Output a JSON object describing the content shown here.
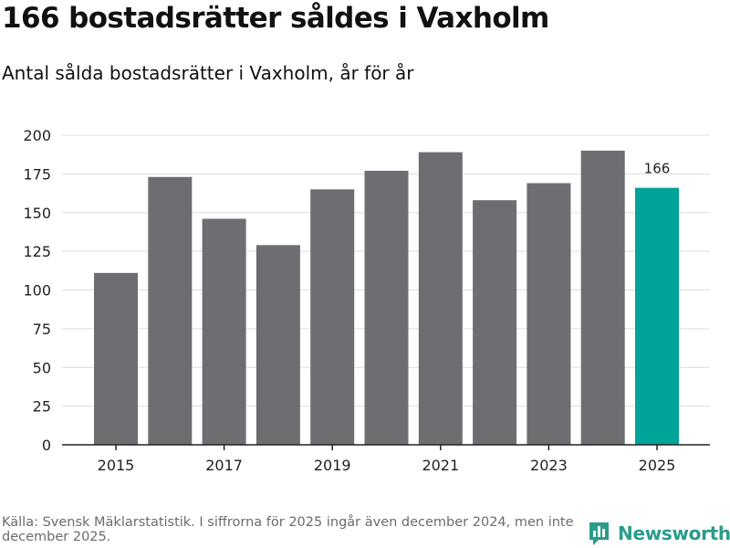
{
  "title": "166 bostadsrätter såldes i Vaxholm",
  "subtitle": "Antal sålda bostadsrätter i Vaxholm, år för år",
  "footer": {
    "source": "Källa: Svensk Mäklarstatistik. I siffrorna för 2025 ingår även december 2024, men inte december 2025.",
    "brand": "Newsworthy",
    "brand_icon": "bar-chart-speech-icon"
  },
  "colors": {
    "bar": "#6e6d72",
    "highlight": "#00a398",
    "grid": "#dddddd",
    "axis": "#222222",
    "brand": "#2a9c8c"
  },
  "chart_data": {
    "type": "bar",
    "title": "166 bostadsrätter såldes i Vaxholm",
    "xlabel": "",
    "ylabel": "",
    "categories": [
      "2015",
      "2016",
      "2017",
      "2018",
      "2019",
      "2020",
      "2021",
      "2022",
      "2023",
      "2024",
      "2025"
    ],
    "values": [
      111,
      173,
      146,
      129,
      165,
      177,
      189,
      158,
      169,
      190,
      166
    ],
    "ylim": [
      0,
      200
    ],
    "yticks": [
      0,
      25,
      50,
      75,
      100,
      125,
      150,
      175,
      200
    ],
    "xtick_labels": [
      "2015",
      "2017",
      "2019",
      "2021",
      "2023",
      "2025"
    ],
    "highlight": "2025",
    "highlight_label": "166",
    "grid": true
  }
}
